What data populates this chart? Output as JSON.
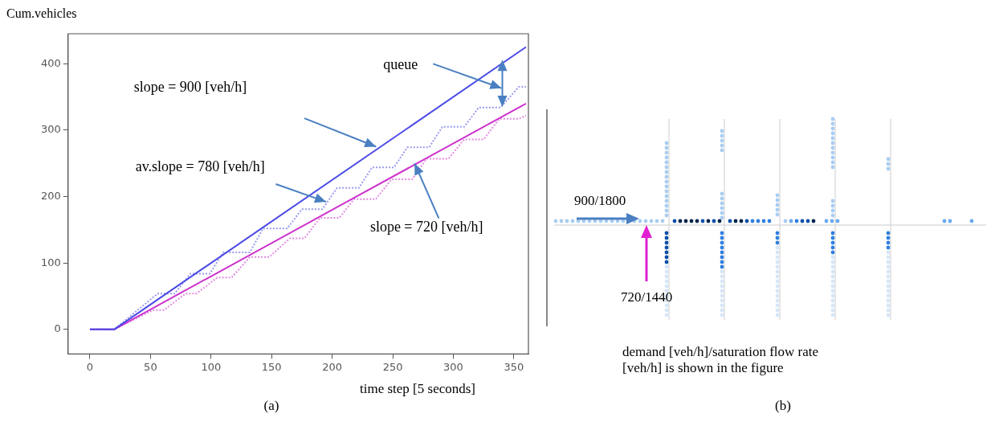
{
  "chart_data": [
    {
      "type": "line",
      "ylabel": "Cum.vehicles",
      "xlabel": "time step [5 seconds]",
      "xlim": [
        -18,
        362
      ],
      "ylim": [
        -37,
        445
      ],
      "xticks": [
        0,
        50,
        100,
        150,
        200,
        250,
        300,
        350
      ],
      "yticks": [
        0,
        100,
        200,
        300,
        400
      ],
      "grid": false,
      "legend": false,
      "marker": "none",
      "series": [
        {
          "color": "#4a4ae6",
          "line_style": "solid",
          "x": [
            0,
            20,
            360
          ],
          "values": [
            0,
            0,
            425
          ]
        },
        {
          "color": "#cc33cc",
          "line_style": "solid",
          "x": [
            0,
            20,
            360
          ],
          "values": [
            0,
            0,
            340
          ]
        },
        {
          "color": "#9a9aee",
          "line_style": "dotted",
          "x": [
            0,
            20,
            56,
            70,
            83,
            99,
            110,
            132,
            143,
            163,
            175,
            192,
            204,
            222,
            233,
            251,
            262,
            280,
            291,
            309,
            321,
            339,
            354,
            360
          ],
          "values": [
            0,
            0,
            54,
            54,
            84,
            84,
            116,
            116,
            152,
            152,
            181,
            181,
            213,
            213,
            244,
            244,
            274,
            274,
            305,
            305,
            334,
            334,
            365,
            365
          ]
        },
        {
          "color": "#e38ae3",
          "line_style": "dotted",
          "x": [
            0,
            20,
            52,
            61,
            79,
            88,
            105,
            117,
            132,
            148,
            165,
            177,
            190,
            206,
            218,
            236,
            249,
            266,
            278,
            296,
            309,
            325,
            338,
            354,
            360
          ],
          "values": [
            0,
            0,
            29,
            29,
            54,
            54,
            78,
            78,
            109,
            109,
            137,
            137,
            168,
            168,
            196,
            196,
            226,
            226,
            257,
            257,
            286,
            286,
            317,
            317,
            322
          ]
        }
      ],
      "annotations": [
        "queue",
        "slope = 900 [veh/h]",
        {
          "text": "av.slope = 780 [veh/h]",
          "x": 195,
          "y": 192
        },
        {
          "text": "slope = 720 [veh/h]",
          "x": 268,
          "y": 250
        },
        "(a)"
      ]
    },
    {
      "type": "other",
      "annotations": [
        "900/1800",
        "720/1440",
        "demand [veh/h]/saturation flow rate [veh/h] is shown in the figure",
        "(b)"
      ]
    }
  ]
}
